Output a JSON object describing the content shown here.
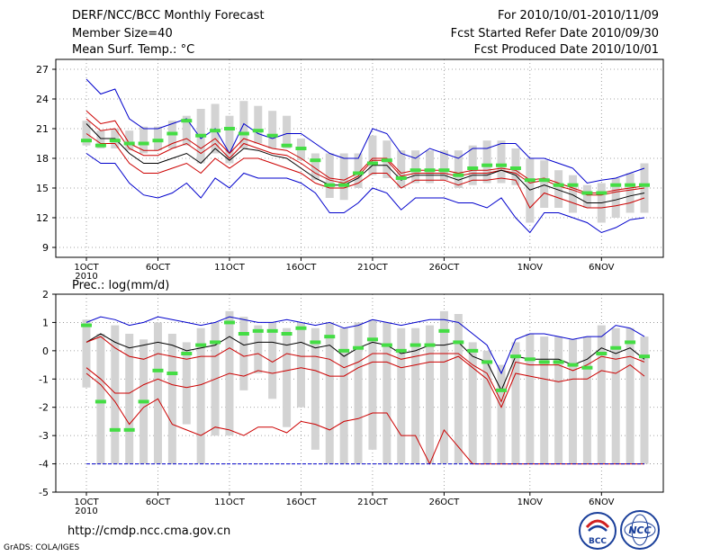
{
  "header": {
    "title": "DERF/NCC/BCC Monthly Forecast",
    "member_size": "Member Size=40",
    "variable": "Mean Surf. Temp.: °C",
    "period": "For 2010/10/01-2010/11/09",
    "started": "Fcst Started Refer Date 2010/09/30",
    "produced": "Fcst Produced Date 2010/10/01"
  },
  "footer": {
    "url": "http://cmdp.ncc.cma.gov.cn",
    "grads": "GrADS: COLA/IGES",
    "logo_left_text": "BCC",
    "logo_right_text": "NCC"
  },
  "colors": {
    "envelope": "#0000cc",
    "quantile": "#cc0000",
    "mean": "#000000",
    "bar": "#d3d3d3",
    "observed": "#44dd44",
    "grid": "#888888"
  },
  "chart_data": [
    {
      "type": "line",
      "title": "Mean Surf. Temp.: °C",
      "ylim": [
        8,
        28
      ],
      "yticks": [
        9,
        12,
        15,
        18,
        21,
        24,
        27
      ],
      "x_range": [
        0,
        39
      ],
      "xticks": [
        {
          "day": 0,
          "label": "1OCT",
          "sub": "2010"
        },
        {
          "day": 5,
          "label": "6OCT"
        },
        {
          "day": 10,
          "label": "11OCT"
        },
        {
          "day": 15,
          "label": "16OCT"
        },
        {
          "day": 20,
          "label": "21OCT"
        },
        {
          "day": 25,
          "label": "26OCT"
        },
        {
          "day": 31,
          "label": "1NOV"
        },
        {
          "day": 36,
          "label": "6NOV"
        }
      ],
      "series": [
        {
          "name": "max",
          "color": "#0000cc",
          "values": [
            26,
            24.5,
            25,
            22,
            21,
            21,
            21.5,
            22,
            20,
            21,
            18.5,
            21.5,
            20.5,
            20,
            20.5,
            20.5,
            19.5,
            18.5,
            18,
            18,
            21,
            20.5,
            18.5,
            18,
            19,
            18.5,
            18,
            19,
            19,
            19.5,
            19.5,
            18,
            18,
            17.5,
            17,
            15.5,
            15.8,
            16,
            16.5,
            17
          ]
        },
        {
          "name": "q_upper",
          "color": "#cc0000",
          "values": [
            22.8,
            21.5,
            21.8,
            19.5,
            18.8,
            18.8,
            19.5,
            20,
            19,
            20,
            18.5,
            20,
            19.5,
            19,
            18.8,
            18,
            17,
            16,
            15.8,
            16.5,
            18,
            18,
            16.5,
            16.8,
            16.8,
            16.8,
            16.5,
            16.8,
            16.8,
            17,
            16.8,
            15.8,
            16,
            15.5,
            15,
            14.5,
            14.5,
            14.8,
            15,
            15.2
          ]
        },
        {
          "name": "q_upper2",
          "color": "#cc0000",
          "values": [
            22,
            20.8,
            21,
            19,
            18.3,
            18.3,
            19,
            19.5,
            18.5,
            19.5,
            18,
            19.5,
            19,
            18.5,
            18.3,
            17.5,
            16.5,
            15.8,
            15.5,
            16.2,
            17.8,
            17.8,
            16.2,
            16.5,
            16.5,
            16.5,
            16.2,
            16.5,
            16.5,
            16.8,
            16.5,
            15.5,
            15.8,
            15.2,
            14.8,
            14.3,
            14.3,
            14.6,
            14.8,
            15
          ]
        },
        {
          "name": "mean",
          "color": "#000000",
          "values": [
            21.5,
            20,
            20,
            18.5,
            17.5,
            17.5,
            18,
            18.5,
            17.5,
            19,
            17.8,
            19,
            18.8,
            18.3,
            18,
            17,
            16,
            15.3,
            15.3,
            16,
            17.3,
            17.3,
            15.8,
            16.3,
            16.3,
            16.3,
            15.8,
            16.3,
            16.3,
            16.8,
            16.3,
            14.8,
            15.3,
            14.8,
            14.3,
            13.5,
            13.5,
            13.8,
            14.2,
            14.5
          ]
        },
        {
          "name": "q_lower",
          "color": "#cc0000",
          "values": [
            20.5,
            19.5,
            19.5,
            17.5,
            16.5,
            16.5,
            17,
            17.5,
            16.5,
            18,
            17,
            18,
            18,
            17.5,
            17,
            16.5,
            15.5,
            15,
            15,
            15.5,
            16.5,
            16.5,
            15,
            15.8,
            15.8,
            15.8,
            15.3,
            15.8,
            15.8,
            16,
            15.8,
            13,
            14.5,
            14,
            13.5,
            13,
            13,
            13.2,
            13.5,
            14
          ]
        },
        {
          "name": "min",
          "color": "#0000cc",
          "values": [
            18.5,
            17.5,
            17.5,
            15.5,
            14.3,
            14,
            14.5,
            15.5,
            14,
            16,
            15,
            16.5,
            16,
            16,
            16,
            15.5,
            14.5,
            12.5,
            12.5,
            13.5,
            15,
            14.5,
            12.8,
            14,
            14,
            14,
            13.5,
            13.5,
            13,
            14,
            12,
            10.5,
            12.5,
            12.5,
            12,
            11.5,
            10.5,
            11,
            11.8,
            12
          ]
        }
      ],
      "bars": {
        "low": [
          19.3,
          19,
          19,
          18.8,
          18.5,
          18.8,
          19,
          19.3,
          17.5,
          18.5,
          17.5,
          19,
          19.5,
          19,
          19,
          17.8,
          15.8,
          14,
          13.8,
          15,
          16.3,
          16,
          15,
          15.5,
          15.5,
          15.8,
          15,
          15.3,
          15.5,
          15.5,
          15.3,
          11.5,
          13,
          13,
          12.5,
          13,
          11.5,
          12,
          12.5,
          12.5
        ],
        "high": [
          21.8,
          20.8,
          21,
          20.8,
          21.2,
          21.2,
          21.8,
          22.3,
          23,
          23.5,
          22.3,
          23.8,
          23.3,
          22.8,
          22.3,
          20,
          18.5,
          18.5,
          18.5,
          18.5,
          20.3,
          19.8,
          18.8,
          18.8,
          18.8,
          18.8,
          18.8,
          19.3,
          19.8,
          19.8,
          19,
          18,
          17.8,
          16.8,
          16.3,
          15.3,
          15.5,
          16,
          16.5,
          17.5
        ]
      },
      "observed": [
        19.8,
        19.3,
        19.8,
        19.5,
        19.5,
        19.8,
        20.5,
        21.8,
        20.3,
        20.8,
        21,
        20.5,
        20.8,
        20.3,
        19.3,
        19,
        17.8,
        15.3,
        15.3,
        16.5,
        17.5,
        17.8,
        16,
        16.8,
        16.8,
        16.8,
        16.3,
        17,
        17.3,
        17.3,
        17,
        15.8,
        15.8,
        15.3,
        15.3,
        14.5,
        14.5,
        15.3,
        15.3,
        15.3
      ]
    },
    {
      "type": "line",
      "title": "Prec.: log(mm/d)",
      "ylim": [
        -5,
        2
      ],
      "yticks": [
        -5,
        -4,
        -3,
        -2,
        -1,
        0,
        1,
        2
      ],
      "x_range": [
        0,
        39
      ],
      "xticks": [
        {
          "day": 0,
          "label": "1OCT",
          "sub": "2010"
        },
        {
          "day": 5,
          "label": "6OCT"
        },
        {
          "day": 10,
          "label": "11OCT"
        },
        {
          "day": 15,
          "label": "16OCT"
        },
        {
          "day": 20,
          "label": "21OCT"
        },
        {
          "day": 25,
          "label": "26OCT"
        },
        {
          "day": 31,
          "label": "1NOV"
        },
        {
          "day": 36,
          "label": "6NOV"
        }
      ],
      "series": [
        {
          "name": "max",
          "color": "#0000cc",
          "values": [
            1,
            1.2,
            1.1,
            0.9,
            1,
            1.2,
            1.1,
            1,
            0.9,
            1,
            1.2,
            1.1,
            1,
            1,
            1.1,
            1,
            0.9,
            1,
            0.8,
            0.9,
            1.1,
            1,
            0.9,
            1,
            1.1,
            1.1,
            1,
            0.6,
            0.2,
            -0.8,
            0.4,
            0.6,
            0.6,
            0.5,
            0.4,
            0.5,
            0.5,
            0.9,
            0.8,
            0.5
          ]
        },
        {
          "name": "mean",
          "color": "#000000",
          "values": [
            0.3,
            0.6,
            0.3,
            0.1,
            0.2,
            0.3,
            0.2,
            0,
            0.1,
            0.2,
            0.5,
            0.2,
            0.3,
            0.3,
            0.2,
            0.3,
            0.1,
            0.2,
            -0.2,
            0.1,
            0.3,
            0.2,
            -0.1,
            0,
            0.2,
            0.2,
            0.3,
            -0.2,
            -0.4,
            -1.4,
            -0.2,
            -0.3,
            -0.3,
            -0.3,
            -0.5,
            -0.3,
            0.1,
            -0.1,
            0.1,
            -0.3
          ]
        },
        {
          "name": "q_upper",
          "color": "#cc0000",
          "values": [
            0.3,
            0.5,
            0.1,
            -0.2,
            -0.3,
            -0.1,
            -0.2,
            -0.3,
            -0.2,
            -0.2,
            0.1,
            -0.2,
            -0.1,
            -0.4,
            -0.1,
            -0.2,
            -0.2,
            -0.3,
            -0.6,
            -0.4,
            -0.1,
            -0.1,
            -0.3,
            -0.2,
            -0.1,
            -0.1,
            -0.1,
            -0.5,
            -0.8,
            -1.8,
            -0.4,
            -0.5,
            -0.5,
            -0.5,
            -0.7,
            -0.5,
            -0.2,
            -0.3,
            -0.2,
            -0.4
          ]
        },
        {
          "name": "q_lower",
          "color": "#cc0000",
          "values": [
            -0.8,
            -1.2,
            -1.8,
            -2.6,
            -2,
            -1.7,
            -2.6,
            -2.8,
            -3,
            -2.7,
            -2.8,
            -3,
            -2.7,
            -2.7,
            -2.9,
            -2.5,
            -2.6,
            -2.8,
            -2.5,
            -2.4,
            -2.2,
            -2.2,
            -3,
            -3,
            -4,
            -2.8,
            -3.4,
            -4,
            -4,
            -4,
            -4,
            -4,
            -4,
            -4,
            -4,
            -4,
            -4,
            -4,
            -4,
            -4
          ]
        },
        {
          "name": "q_lower2",
          "color": "#cc0000",
          "values": [
            -0.6,
            -1,
            -1.5,
            -1.5,
            -1.2,
            -1,
            -1.2,
            -1.3,
            -1.2,
            -1,
            -0.8,
            -0.9,
            -0.7,
            -0.8,
            -0.7,
            -0.6,
            -0.7,
            -0.9,
            -0.9,
            -0.6,
            -0.4,
            -0.4,
            -0.6,
            -0.5,
            -0.4,
            -0.4,
            -0.2,
            -0.6,
            -1,
            -2,
            -0.8,
            -0.9,
            -1,
            -1.1,
            -1,
            -1,
            -0.7,
            -0.8,
            -0.5,
            -0.9
          ]
        },
        {
          "name": "floor",
          "color": "#0000cc",
          "values": [
            -4,
            -4,
            -4,
            -4,
            -4,
            -4,
            -4,
            -4,
            -4,
            -4,
            -4,
            -4,
            -4,
            -4,
            -4,
            -4,
            -4,
            -4,
            -4,
            -4,
            -4,
            -4,
            -4,
            -4,
            -4,
            -4,
            -4,
            -4,
            -4,
            -4,
            -4,
            -4,
            -4,
            -4,
            -4,
            -4,
            -4,
            -4,
            -4,
            -4
          ]
        }
      ],
      "bars": {
        "low": [
          -1.3,
          -4,
          -4,
          -4,
          -4,
          -4,
          -4,
          -2.6,
          -4,
          -3,
          -3,
          -1.4,
          -0.8,
          -1.7,
          -2.7,
          -2,
          -3.5,
          -4,
          -4,
          -4,
          -3.5,
          -4,
          -4,
          -4,
          -4,
          -4,
          -4,
          -4,
          -4,
          -4,
          -4,
          -4,
          -4,
          -4,
          -4,
          -4,
          -4,
          -4,
          -4,
          -4
        ],
        "high": [
          1.1,
          0.6,
          0.9,
          0.6,
          0.4,
          1,
          0.6,
          0.3,
          0.8,
          1,
          1.4,
          1.2,
          0.9,
          1,
          0.8,
          1,
          0.8,
          1,
          0.8,
          1,
          1.1,
          1,
          0.8,
          0.8,
          0.9,
          1.4,
          1.3,
          0.3,
          0,
          -0.5,
          0.3,
          0.6,
          0.5,
          0.5,
          0.4,
          0.5,
          0.9,
          0.8,
          0.8,
          0.5
        ]
      },
      "observed": [
        0.9,
        -1.8,
        -2.8,
        -2.8,
        -1.8,
        -0.7,
        -0.8,
        -0.1,
        0.2,
        0.3,
        1,
        0.6,
        0.7,
        0.7,
        0.6,
        0.8,
        0.3,
        0.5,
        0,
        0.1,
        0.4,
        0.2,
        0,
        0.2,
        0.2,
        0.7,
        0.3,
        0,
        -0.4,
        -1.4,
        -0.2,
        -0.3,
        -0.4,
        -0.4,
        -0.5,
        -0.6,
        -0.1,
        0.1,
        0.3,
        -0.2
      ]
    }
  ]
}
